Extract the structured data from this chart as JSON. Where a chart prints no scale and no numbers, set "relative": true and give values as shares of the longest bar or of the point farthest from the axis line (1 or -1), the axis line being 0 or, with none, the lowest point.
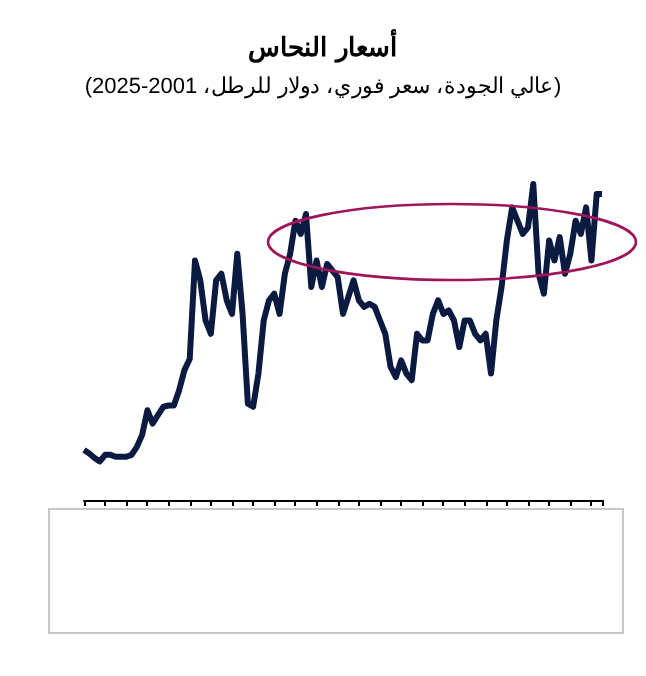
{
  "chart_data": {
    "type": "line",
    "title": "أسعار النحاس",
    "subtitle": "(عالي الجودة، سعر فوري، دولار للرطل، 2001-2025)",
    "relative": true,
    "line_style": "solid",
    "categories": [
      null,
      null,
      null,
      null,
      null,
      null,
      null,
      null,
      null,
      null,
      null,
      null,
      null,
      null,
      null,
      null,
      null,
      null,
      null,
      null,
      null,
      null,
      null,
      null,
      null,
      null,
      null,
      null,
      null,
      null,
      null,
      null,
      null,
      null,
      null,
      null,
      null,
      null,
      null,
      null,
      null,
      null,
      null,
      null,
      null,
      null,
      null,
      null,
      null,
      null,
      null,
      null,
      null,
      null,
      null,
      null,
      null,
      null,
      null,
      null,
      null,
      null,
      null,
      null,
      null,
      null,
      null,
      null,
      null,
      null,
      null,
      null,
      null,
      null,
      null,
      null,
      null,
      null,
      null,
      null,
      null,
      null,
      null,
      null,
      null,
      null,
      null,
      null,
      null,
      null,
      null,
      null,
      null,
      null,
      null,
      null,
      null,
      null,
      null
    ],
    "series": [
      {
        "color": "#0a1a40",
        "values": [
          0.158,
          0.147,
          0.133,
          0.122,
          0.143,
          0.143,
          0.137,
          0.137,
          0.137,
          0.143,
          0.168,
          0.206,
          0.284,
          0.242,
          0.269,
          0.295,
          0.299,
          0.299,
          0.347,
          0.411,
          0.446,
          0.758,
          0.695,
          0.568,
          0.526,
          0.695,
          0.716,
          0.632,
          0.589,
          0.779,
          0.589,
          0.305,
          0.295,
          0.4,
          0.568,
          0.632,
          0.653,
          0.589,
          0.716,
          0.779,
          0.884,
          0.842,
          0.905,
          0.674,
          0.758,
          0.674,
          0.747,
          0.726,
          0.705,
          0.589,
          0.642,
          0.695,
          0.632,
          0.611,
          0.621,
          0.611,
          0.568,
          0.526,
          0.421,
          0.389,
          0.442,
          0.4,
          0.379,
          0.526,
          0.505,
          0.505,
          0.589,
          0.632,
          0.589,
          0.6,
          0.568,
          0.484,
          0.568,
          0.568,
          0.526,
          0.505,
          0.526,
          0.4,
          0.568,
          0.674,
          0.821,
          0.926,
          0.884,
          0.842,
          0.863,
          1,
          0.716,
          0.653,
          0.821,
          0.758,
          0.832,
          0.716,
          0.779,
          0.884,
          0.842,
          0.926,
          0.758,
          0.968,
          0.968
        ]
      }
    ]
  }
}
